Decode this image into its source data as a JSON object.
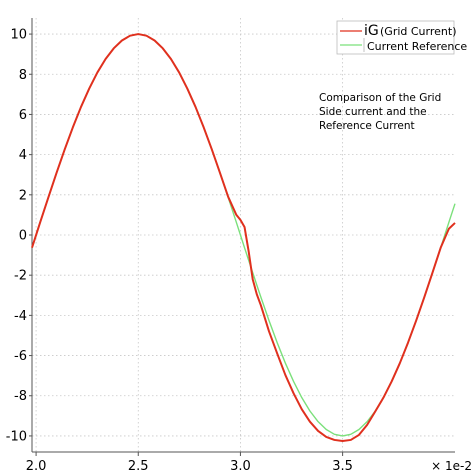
{
  "chart_data": {
    "type": "line",
    "xlim": [
      0.0198,
      0.0405
    ],
    "ylim": [
      -10.8,
      10.8
    ],
    "x_ticks": [
      "2.0",
      "2.5",
      "3.0",
      "3.5"
    ],
    "x_tick_values": [
      0.02,
      0.025,
      0.03,
      0.035
    ],
    "y_ticks": [
      "10",
      "8",
      "6",
      "4",
      "2",
      "0",
      "-2",
      "-4",
      "-6",
      "-8",
      "-10"
    ],
    "y_tick_values": [
      10,
      8,
      6,
      4,
      2,
      0,
      -2,
      -4,
      -6,
      -8,
      -10
    ],
    "x_scale_label": "× 1e-2",
    "grid": true,
    "legend_position": "top-right",
    "series": [
      {
        "name_main": "iG",
        "name_sub": "(Grid Current)",
        "color": "#e0301e",
        "x": [
          0.0198,
          0.0202,
          0.0206,
          0.021,
          0.0214,
          0.0218,
          0.0222,
          0.0226,
          0.023,
          0.0234,
          0.0238,
          0.0242,
          0.0246,
          0.025,
          0.0254,
          0.0258,
          0.0262,
          0.0266,
          0.027,
          0.0274,
          0.0278,
          0.0282,
          0.0286,
          0.029,
          0.0294,
          0.0298,
          0.03,
          0.0302,
          0.0304,
          0.0306,
          0.0308,
          0.031,
          0.0314,
          0.0318,
          0.0322,
          0.0326,
          0.033,
          0.0334,
          0.0338,
          0.0342,
          0.0346,
          0.035,
          0.0354,
          0.0358,
          0.0362,
          0.0366,
          0.037,
          0.0374,
          0.0378,
          0.0382,
          0.0386,
          0.039,
          0.0394,
          0.0398,
          0.0402,
          0.0405
        ],
        "y": [
          -0.63,
          0.63,
          1.87,
          3.09,
          4.26,
          5.36,
          6.38,
          7.29,
          8.09,
          8.76,
          9.29,
          9.68,
          9.92,
          10.0,
          9.92,
          9.68,
          9.29,
          8.76,
          8.09,
          7.29,
          6.38,
          5.36,
          4.26,
          3.09,
          1.9,
          1.0,
          0.75,
          0.4,
          -0.8,
          -2.2,
          -2.95,
          -3.5,
          -4.8,
          -5.9,
          -6.97,
          -7.88,
          -8.67,
          -9.29,
          -9.75,
          -10.05,
          -10.2,
          -10.25,
          -10.2,
          -9.95,
          -9.45,
          -8.78,
          -8.09,
          -7.29,
          -6.38,
          -5.36,
          -4.26,
          -3.09,
          -1.87,
          -0.63,
          0.31,
          0.6
        ]
      },
      {
        "name": "Current Reference",
        "color": "#7be07b",
        "x": [
          0.0198,
          0.0202,
          0.0206,
          0.021,
          0.0214,
          0.0218,
          0.0222,
          0.0226,
          0.023,
          0.0234,
          0.0238,
          0.0242,
          0.0246,
          0.025,
          0.0254,
          0.0258,
          0.0262,
          0.0266,
          0.027,
          0.0274,
          0.0278,
          0.0282,
          0.0286,
          0.029,
          0.0294,
          0.0298,
          0.03,
          0.0302,
          0.0304,
          0.0306,
          0.0308,
          0.031,
          0.0314,
          0.0318,
          0.0322,
          0.0326,
          0.033,
          0.0334,
          0.0338,
          0.0342,
          0.0346,
          0.035,
          0.0354,
          0.0358,
          0.0362,
          0.0366,
          0.037,
          0.0374,
          0.0378,
          0.0382,
          0.0386,
          0.039,
          0.0394,
          0.0398,
          0.0402,
          0.0405
        ],
        "y": [
          -0.63,
          0.63,
          1.87,
          3.09,
          4.26,
          5.36,
          6.38,
          7.29,
          8.09,
          8.76,
          9.29,
          9.68,
          9.92,
          10.0,
          9.92,
          9.68,
          9.29,
          8.76,
          8.09,
          7.29,
          6.38,
          5.36,
          4.26,
          3.09,
          1.87,
          0.63,
          0.0,
          -0.63,
          -1.25,
          -1.87,
          -2.49,
          -3.09,
          -4.26,
          -5.36,
          -6.38,
          -7.29,
          -8.09,
          -8.76,
          -9.29,
          -9.68,
          -9.92,
          -10.0,
          -9.92,
          -9.68,
          -9.29,
          -8.76,
          -8.09,
          -7.29,
          -6.38,
          -5.36,
          -4.26,
          -3.09,
          -1.87,
          -0.63,
          0.63,
          1.56
        ]
      }
    ],
    "annotation": [
      "Comparison of the Grid",
      "Side current and the",
      "Reference Current"
    ]
  }
}
